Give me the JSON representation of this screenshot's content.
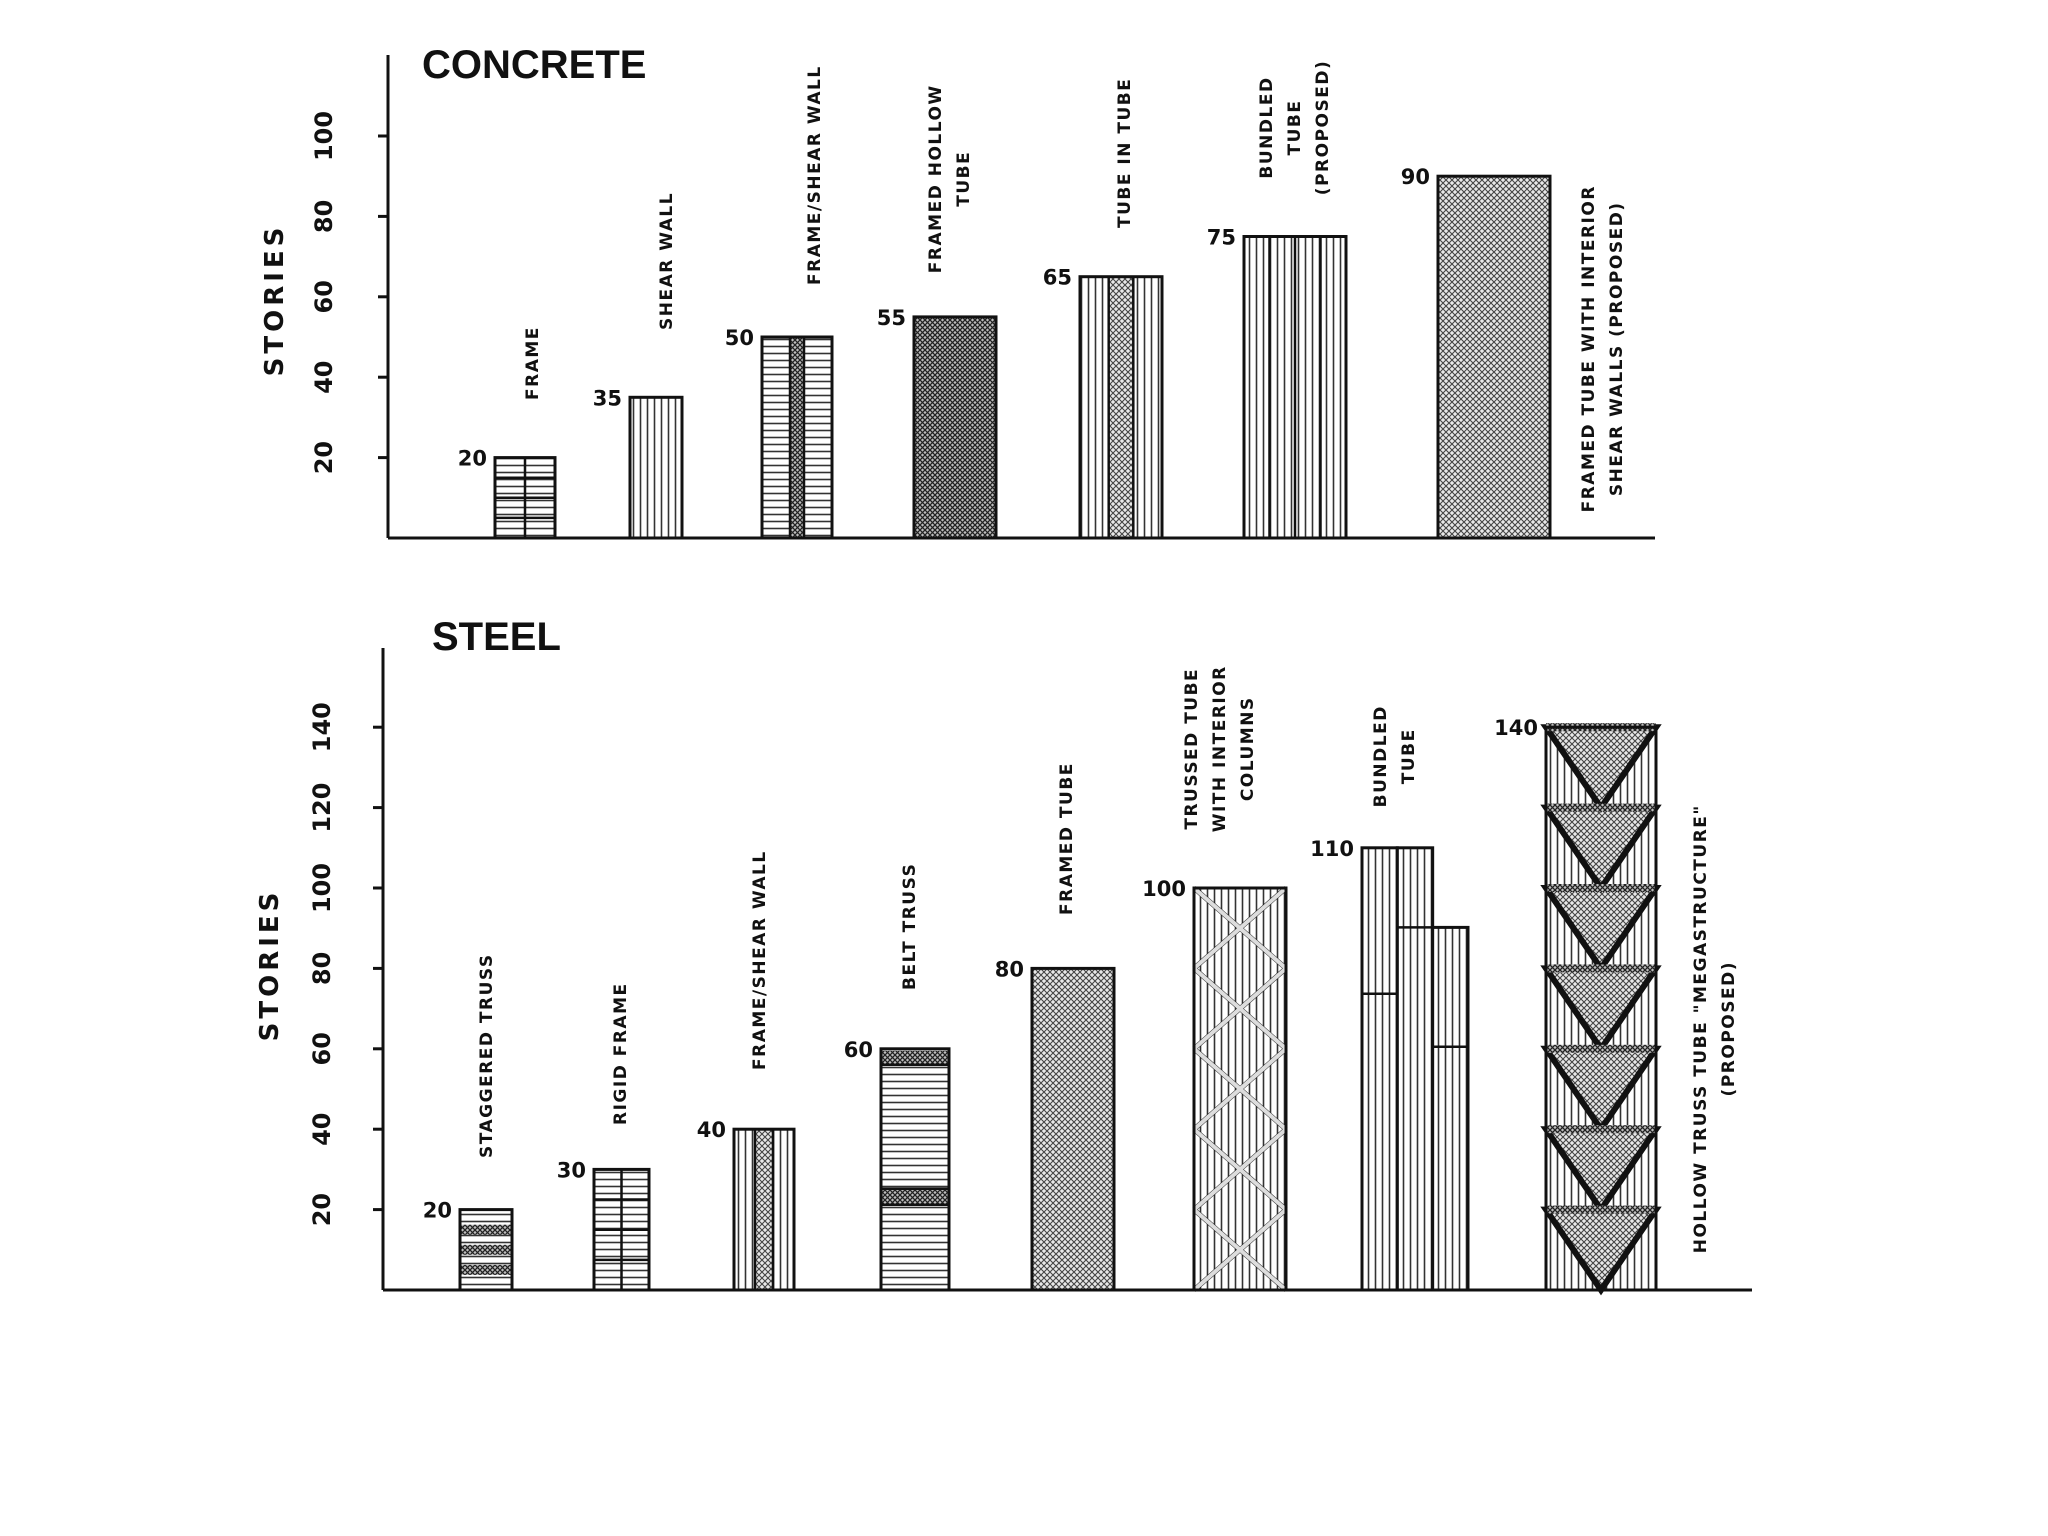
{
  "chart_data": [
    {
      "type": "bar",
      "title": "CONCRETE",
      "ylabel": "STORIES",
      "ylim": [
        0,
        110
      ],
      "yticks": [
        20,
        40,
        60,
        80,
        100
      ],
      "categories": [
        "FRAME",
        "SHEAR WALL",
        "FRAME/SHEAR WALL",
        "FRAMED HOLLOW TUBE",
        "TUBE IN TUBE",
        "BUNDLED TUBE (PROPOSED)",
        "FRAMED TUBE WITH INTERIOR SHEAR WALLS (PROPOSED)"
      ],
      "label_lines": [
        [
          "FRAME"
        ],
        [
          "SHEAR WALL"
        ],
        [
          "FRAME/SHEAR WALL"
        ],
        [
          "FRAMED HOLLOW",
          "TUBE"
        ],
        [
          "TUBE IN TUBE"
        ],
        [
          "BUNDLED",
          "TUBE",
          "(PROPOSED)"
        ],
        [
          "FRAMED TUBE WITH INTERIOR",
          "SHEAR WALLS (PROPOSED)"
        ]
      ],
      "values": [
        20,
        35,
        50,
        55,
        65,
        75,
        90
      ],
      "value_labels": [
        "20",
        "35",
        "50",
        "55",
        "65",
        "75",
        "90"
      ],
      "patterns": [
        "grid",
        "vlines",
        "hlines-cross-core",
        "dense-cross",
        "vlines-cross-core",
        "bundled-vlines",
        "cross"
      ]
    },
    {
      "type": "bar",
      "title": "STEEL",
      "ylabel": "STORIES",
      "ylim": [
        0,
        140
      ],
      "yticks": [
        20,
        40,
        60,
        80,
        100,
        120,
        140
      ],
      "categories": [
        "STAGGERED TRUSS",
        "RIGID FRAME",
        "FRAME/SHEAR WALL",
        "BELT TRUSS",
        "FRAMED TUBE",
        "TRUSSED TUBE WITH INTERIOR COLUMNS",
        "BUNDLED TUBE",
        "HOLLOW TRUSS TUBE \"MEGASTRUCTURE\" (PROPOSED)"
      ],
      "label_lines": [
        [
          "STAGGERED TRUSS"
        ],
        [
          "RIGID FRAME"
        ],
        [
          "FRAME/SHEAR WALL"
        ],
        [
          "BELT TRUSS"
        ],
        [
          "FRAMED TUBE"
        ],
        [
          "TRUSSED TUBE",
          "WITH INTERIOR",
          "COLUMNS"
        ],
        [
          "BUNDLED",
          "TUBE"
        ],
        [
          "HOLLOW TRUSS TUBE \"MEGASTRUCTURE\"",
          "(PROPOSED)"
        ]
      ],
      "values": [
        20,
        30,
        40,
        60,
        80,
        100,
        110,
        140
      ],
      "value_labels": [
        "20",
        "30",
        "40",
        "60",
        "80",
        "100",
        "110",
        "140"
      ],
      "patterns": [
        "hlines-stagger",
        "grid",
        "vlines-cross-core",
        "hlines-belt",
        "cross",
        "x-braced",
        "bundled-stepped",
        "truss-triangles"
      ]
    }
  ]
}
